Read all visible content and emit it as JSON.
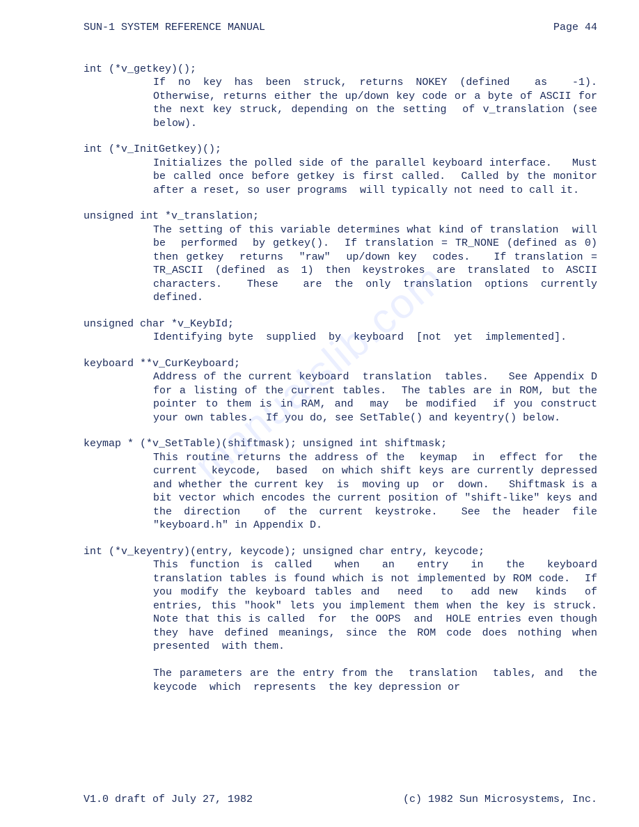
{
  "header": {
    "title": "SUN-1 SYSTEM REFERENCE MANUAL",
    "page": "Page 44"
  },
  "entries": [
    {
      "decl": "int (*v_getkey)();",
      "body": "If no key has been struck, returns NOKEY (defined  as  -1).  Otherwise, returns either the up/down key code or a byte of ASCII for the next key struck, depending on the setting  of v_translation (see below)."
    },
    {
      "decl": "int (*v_InitGetkey)();",
      "body": "Initializes the polled side of the parallel keyboard interface.   Must  be called once before getkey is first called.  Called by the monitor after a reset, so user programs  will typically not need to call it."
    },
    {
      "decl": "unsigned int *v_translation;",
      "body": "The setting of this variable determines what kind of translation  will  be  performed  by getkey().  If translation = TR_NONE (defined as 0) then getkey  returns  \"raw\"  up/down key  codes.   If translation = TR_ASCII (defined as 1) then keystrokes are translated to ASCII characters.  These  are the only translation options currently defined."
    },
    {
      "decl": "unsigned char *v_KeybId;",
      "body": "Identifying byte  supplied  by  keyboard  [not  yet  implemented]."
    },
    {
      "decl": "keyboard **v_CurKeyboard;",
      "body": "Address of the current keyboard  translation  tables.   See Appendix D for a listing of the current tables.  The tables are in ROM, but the pointer to them is in RAM, and  may  be modified  if you construct your own tables.  If you do, see SetTable() and keyentry() below."
    },
    {
      "decl": "keymap * (*v_SetTable)(shiftmask);\nunsigned int shiftmask;",
      "body": "This routine returns the address of the  keymap  in  effect for  the  current  keycode,  based  on which shift keys are currently depressed and whether the current key  is  moving up  or  down.   Shiftmask is a bit vector which encodes the current position of \"shift-like\" keys and the direction  of the current keystroke.  See the header file \"keyboard.h\" in Appendix D."
    },
    {
      "decl": "int (*v_keyentry)(entry, keycode);\nunsigned char entry, keycode;",
      "body": "This function is called  when  an  entry  in  the  keyboard translation tables is found which is not implemented by ROM code.  If you modify the keyboard tables and  need  to  add new  kinds  of entries, this \"hook\" lets you implement them when the key is struck.  Note that this is called  for  the OOPS  and  HOLE entries even though they have defined meanings, since the ROM code does nothing when  presented  with them.\n\nThe parameters are the entry from the  translation  tables, and  the  keycode  which  represents  the key depression or"
    }
  ],
  "footer": {
    "version": "V1.0 draft of July 27, 1982",
    "copyright": "(c) 1982 Sun Microsystems, Inc."
  },
  "watermark": "manualslib.com"
}
